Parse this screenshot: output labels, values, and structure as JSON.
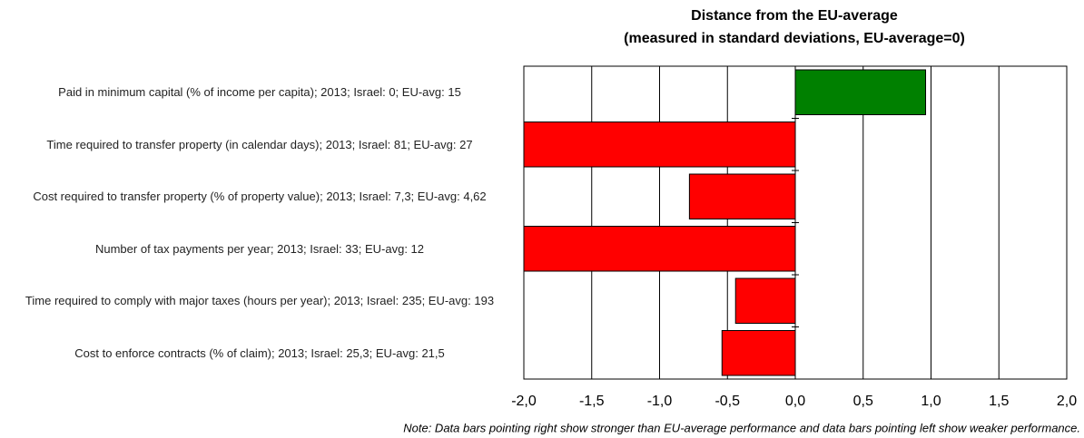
{
  "chart_data": {
    "type": "barh",
    "title": "Distance from the EU-average",
    "subtitle": "(measured in standard deviations, EU-average=0)",
    "categories": [
      "Paid in minimum capital (% of income per capita); 2013; Israel: 0; EU-avg: 15",
      "Time required to transfer property (in calendar days); 2013; Israel: 81; EU-avg: 27",
      "Cost required to transfer property (% of property value); 2013; Israel: 7,3; EU-avg: 4,62",
      "Number of tax payments per year; 2013; Israel: 33; EU-avg: 12",
      "Time required to comply with major taxes (hours per year); 2013; Israel: 235; EU-avg: 193",
      "Cost to enforce contracts (% of claim); 2013; Israel: 25,3; EU-avg: 21,5"
    ],
    "values": [
      0.96,
      -2.0,
      -0.78,
      -2.0,
      -0.44,
      -0.54
    ],
    "colors": [
      "#008000",
      "#ff0000",
      "#ff0000",
      "#ff0000",
      "#ff0000",
      "#ff0000"
    ],
    "xlim": [
      -2,
      2
    ],
    "xticks": [
      {
        "value": -2,
        "label": "-2,0"
      },
      {
        "value": -1.5,
        "label": "-1,5"
      },
      {
        "value": -1,
        "label": "-1,0"
      },
      {
        "value": -0.5,
        "label": "-0,5"
      },
      {
        "value": 0,
        "label": "0,0"
      },
      {
        "value": 0.5,
        "label": "0,5"
      },
      {
        "value": 1,
        "label": "1,0"
      },
      {
        "value": 1.5,
        "label": "1,5"
      },
      {
        "value": 2,
        "label": "2,0"
      }
    ],
    "grid": true,
    "note": "Note: Data bars pointing right show stronger than EU-average performance and data bars pointing left show weaker performance."
  }
}
